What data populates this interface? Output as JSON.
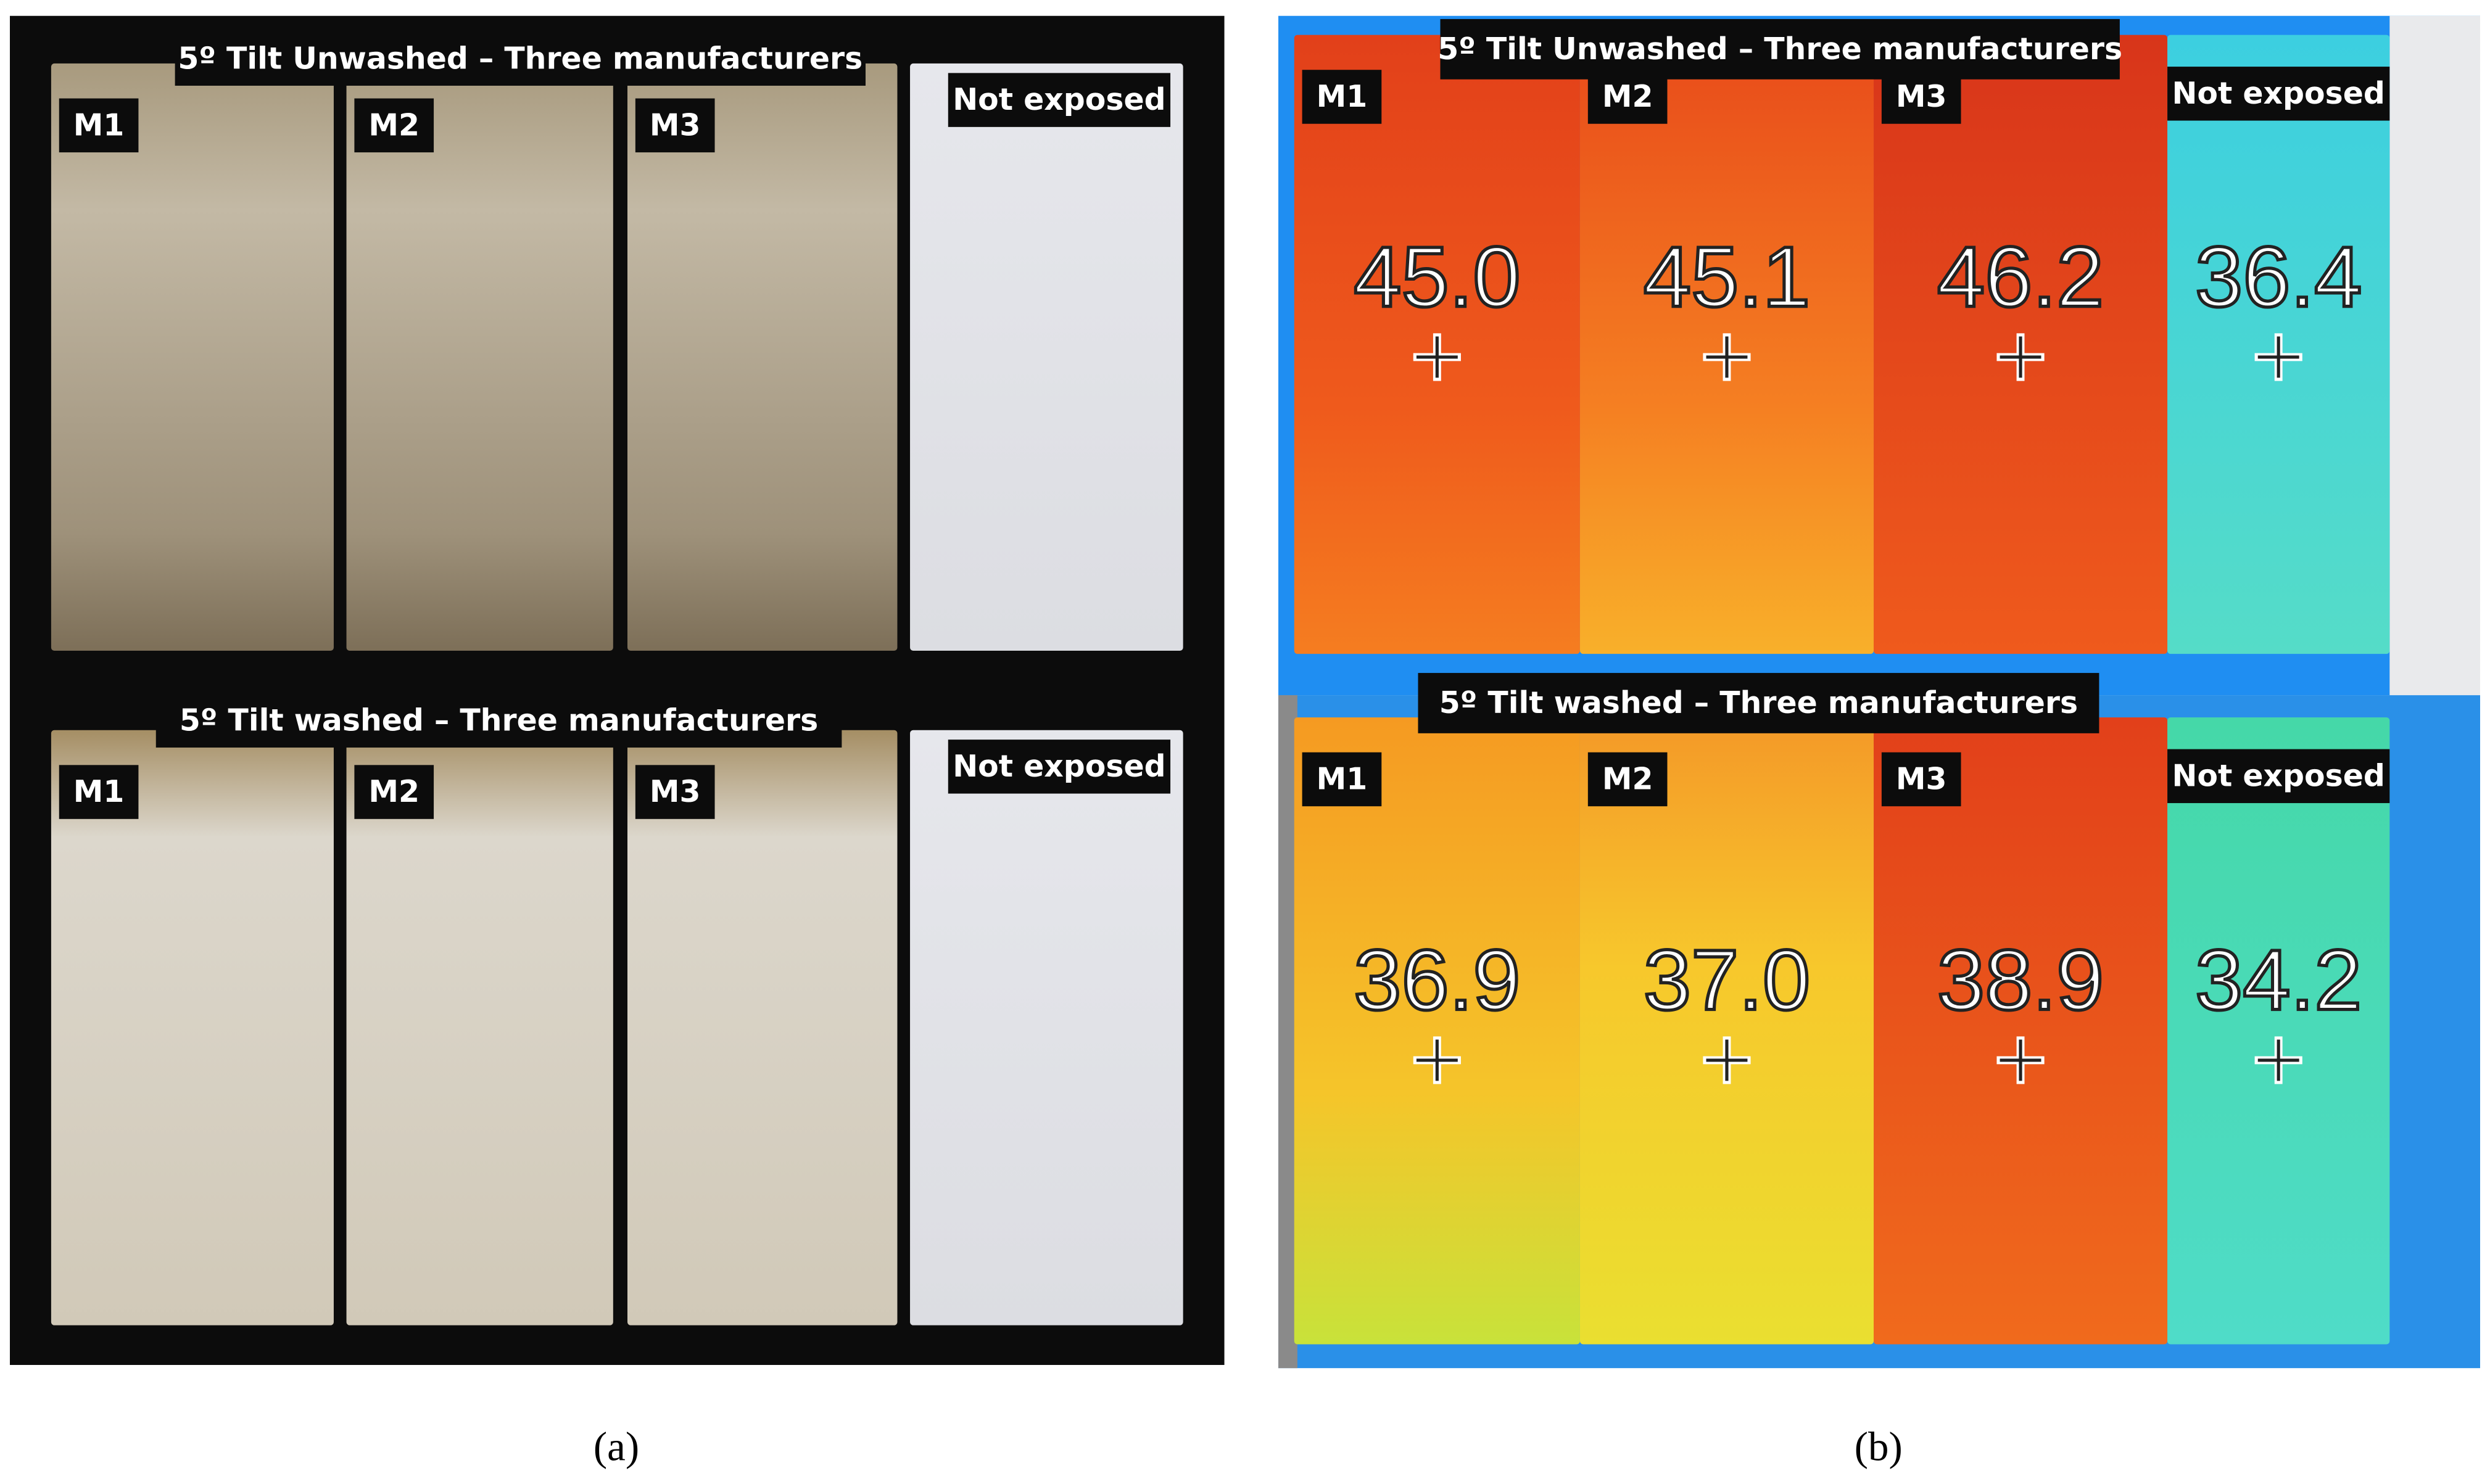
{
  "panels": [
    {
      "caption": "(a)",
      "rows": [
        {
          "title": "5º Tilt Unwashed – Three manufacturers",
          "labels": [
            "M1",
            "M2",
            "M3",
            "Not exposed"
          ]
        },
        {
          "title": "5º Tilt washed – Three manufacturers",
          "labels": [
            "M1",
            "M2",
            "M3",
            "Not exposed"
          ]
        }
      ]
    },
    {
      "caption": "(b)",
      "rows": [
        {
          "title": "5º Tilt Unwashed – Three manufacturers",
          "labels": [
            "M1",
            "M2",
            "M3",
            "Not exposed"
          ],
          "temperatures": [
            "45.0",
            "45.1",
            "46.2",
            "36.4"
          ]
        },
        {
          "title": "5º Tilt washed – Three manufacturers",
          "labels": [
            "M1",
            "M2",
            "M3",
            "Not exposed"
          ],
          "temperatures": [
            "36.9",
            "37.0",
            "38.9",
            "34.2"
          ]
        }
      ]
    }
  ]
}
